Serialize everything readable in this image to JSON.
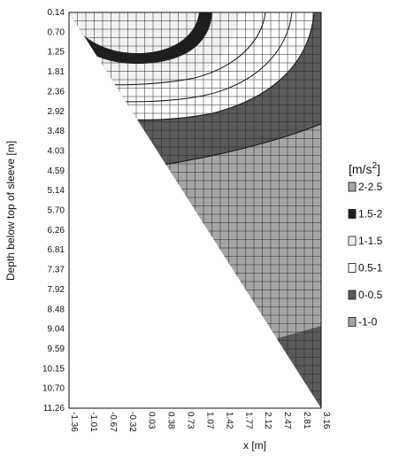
{
  "chart_data": {
    "type": "heatmap",
    "xlabel": "x [m]",
    "ylabel": "Depth below top of sleeve [m]",
    "x_ticks": [
      "-1.36",
      "-1.01",
      "-0.67",
      "-0.32",
      "0.03",
      "0.38",
      "0.73",
      "1.07",
      "1.42",
      "1.77",
      "2.12",
      "2.47",
      "2.81",
      "3.16"
    ],
    "y_ticks": [
      "0.14",
      "0.70",
      "1.25",
      "1.81",
      "2.36",
      "2.92",
      "3.48",
      "4.03",
      "4.59",
      "5.14",
      "5.70",
      "6.26",
      "6.81",
      "7.37",
      "7.92",
      "8.48",
      "9.04",
      "9.59",
      "10.15",
      "10.70",
      "11.26"
    ],
    "xlim": [
      -1.36,
      3.16
    ],
    "ylim": [
      0.14,
      11.26
    ],
    "y_inverted": true,
    "grid": true,
    "legend_position": "right",
    "legend": {
      "title_text": "[m/s",
      "title_sup": "2",
      "title_close": "]",
      "entries": [
        {
          "label": "2-2.5",
          "color": "#a6a6a6"
        },
        {
          "label": "1.5-2",
          "color": "#1e1e1e"
        },
        {
          "label": "1-1.5",
          "color": "#f2f2f2"
        },
        {
          "label": "0.5-1",
          "color": "#ffffff"
        },
        {
          "label": "0-0.5",
          "color": "#5a5a5a"
        },
        {
          "label": "-1-0",
          "color": "#a6a6a6"
        }
      ]
    },
    "domain_boundary": "upper-right triangular region from top edge to diagonal running from (x=-1.36, depth=0.14) to (x=3.16, depth=11.26)",
    "zones": [
      {
        "range": "1.5-2",
        "description": "thin dark arc band in top-left near surface"
      },
      {
        "range": "0.5-1",
        "description": "nested white contour bands below the dark arc"
      },
      {
        "range": "0-0.5",
        "description": "dark band crossing diagonally at mid depth and lower-right corner"
      },
      {
        "range": "-1-0",
        "description": "light grey region filling the deeper part of the domain"
      }
    ]
  }
}
